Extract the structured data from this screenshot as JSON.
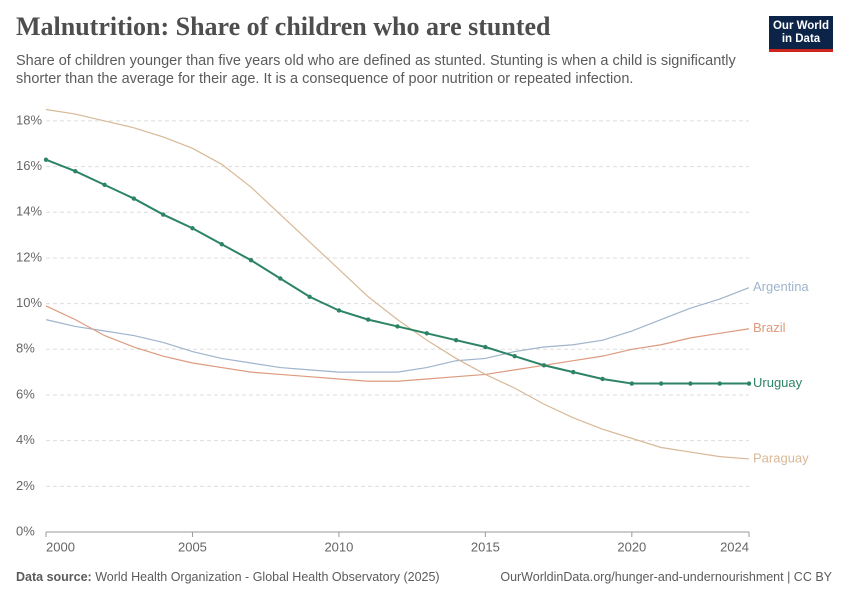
{
  "title": "Malnutrition: Share of children who are stunted",
  "subtitle": "Share of children younger than five years old who are defined as stunted. Stunting is when a child is significantly shorter than the average for their age. It is a consequence of poor nutrition or repeated infection.",
  "logo": [
    "Our World",
    "in Data"
  ],
  "footer": {
    "source_label": "Data source:",
    "source": "World Health Organization - Global Health Observatory (2025)",
    "link": "OurWorldinData.org/hunger-and-undernourishment | CC BY"
  },
  "chart_data": {
    "type": "line",
    "x": [
      2000,
      2001,
      2002,
      2003,
      2004,
      2005,
      2006,
      2007,
      2008,
      2009,
      2010,
      2011,
      2012,
      2013,
      2014,
      2015,
      2016,
      2017,
      2018,
      2019,
      2020,
      2021,
      2022,
      2023,
      2024
    ],
    "series": [
      {
        "name": "Argentina",
        "color": "#9fb4cc",
        "values": [
          9.3,
          9.0,
          8.8,
          8.6,
          8.3,
          7.9,
          7.6,
          7.4,
          7.2,
          7.1,
          7.0,
          7.0,
          7.0,
          7.2,
          7.5,
          7.6,
          7.9,
          8.1,
          8.2,
          8.4,
          8.8,
          9.3,
          9.8,
          10.2,
          10.7
        ]
      },
      {
        "name": "Brazil",
        "color": "#dd9a7e",
        "values": [
          9.9,
          9.3,
          8.6,
          8.1,
          7.7,
          7.4,
          7.2,
          7.0,
          6.9,
          6.8,
          6.7,
          6.6,
          6.6,
          6.7,
          6.8,
          6.9,
          7.1,
          7.3,
          7.5,
          7.7,
          8.0,
          8.2,
          8.5,
          8.7,
          8.9
        ]
      },
      {
        "name": "Paraguay",
        "color": "#d8b897",
        "values": [
          18.5,
          18.3,
          18.0,
          17.7,
          17.3,
          16.8,
          16.1,
          15.1,
          13.9,
          12.7,
          11.5,
          10.3,
          9.3,
          8.4,
          7.6,
          6.9,
          6.3,
          5.6,
          5.0,
          4.5,
          4.1,
          3.7,
          3.5,
          3.3,
          3.2
        ]
      },
      {
        "name": "Uruguay",
        "color": "#2c8465",
        "markers": true,
        "values": [
          16.3,
          15.8,
          15.2,
          14.6,
          13.9,
          13.3,
          12.6,
          11.9,
          11.1,
          10.3,
          9.7,
          9.3,
          9.0,
          8.7,
          8.4,
          8.1,
          7.7,
          7.3,
          7.0,
          6.7,
          6.5,
          6.5,
          6.5,
          6.5,
          6.5
        ]
      }
    ],
    "xlim": [
      2000,
      2024
    ],
    "xticks": [
      2000,
      2005,
      2010,
      2015,
      2020,
      2024
    ],
    "ylim": [
      0,
      18.5
    ],
    "yticks": [
      {
        "value": 0,
        "label": "0%"
      },
      {
        "value": 2,
        "label": "2%"
      },
      {
        "value": 4,
        "label": "4%"
      },
      {
        "value": 6,
        "label": "6%"
      },
      {
        "value": 8,
        "label": "8%"
      },
      {
        "value": 10,
        "label": "10%"
      },
      {
        "value": 12,
        "label": "12%"
      },
      {
        "value": 14,
        "label": "14%"
      },
      {
        "value": 16,
        "label": "16%"
      },
      {
        "value": 18,
        "label": "18%"
      }
    ],
    "grid": true
  }
}
